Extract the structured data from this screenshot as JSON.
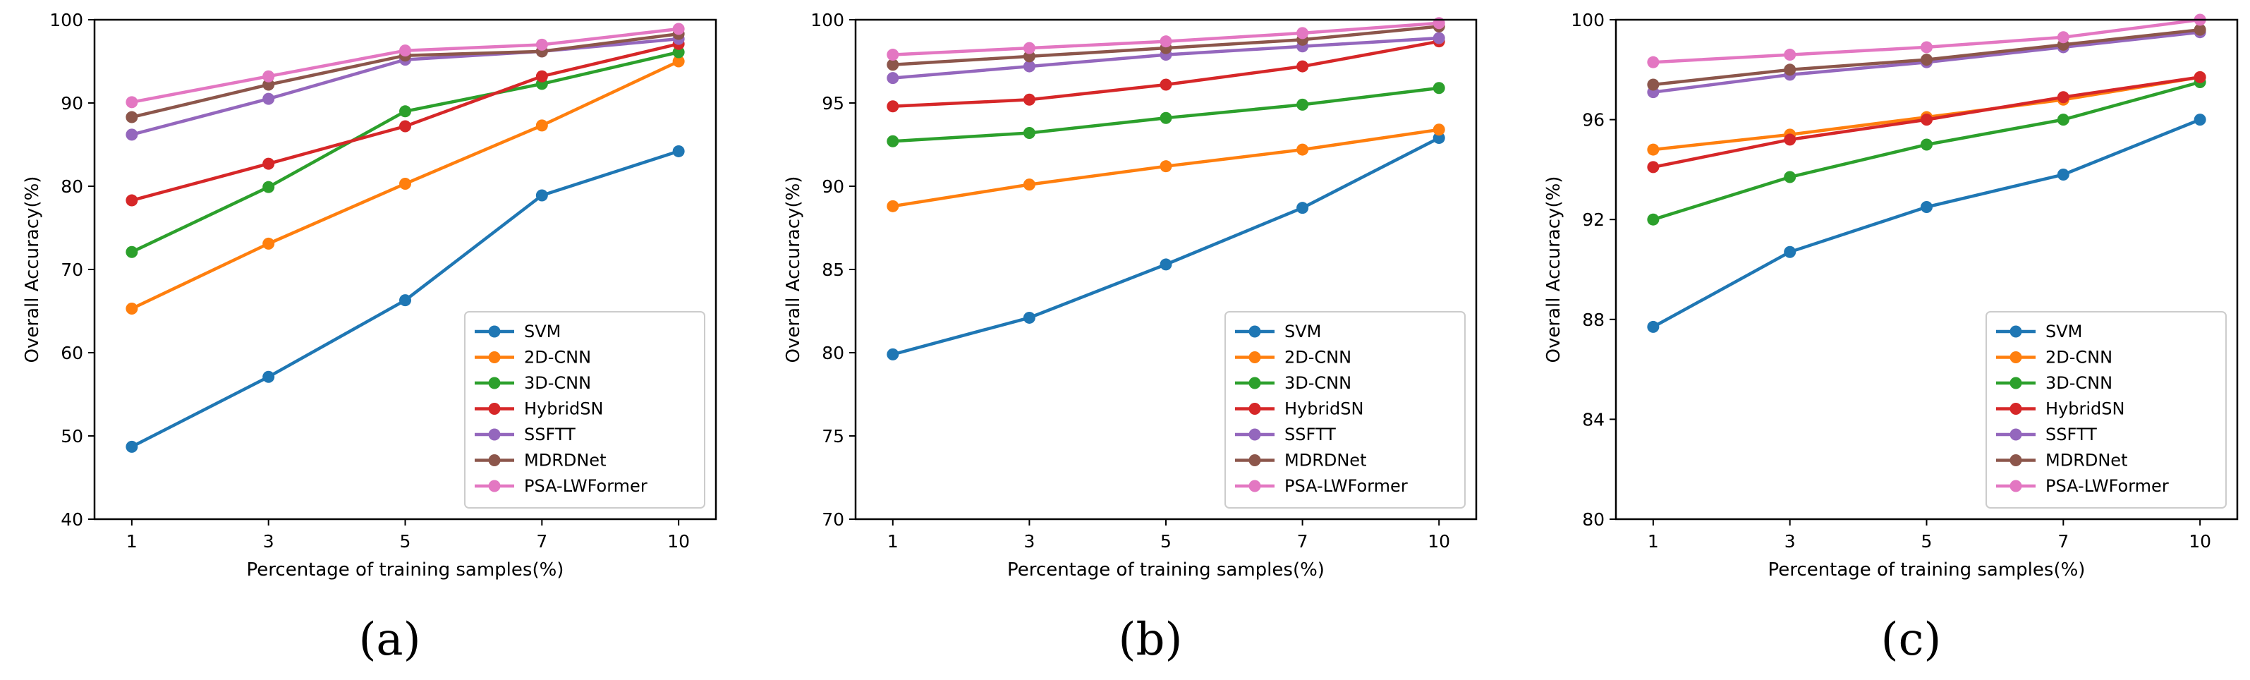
{
  "figure": {
    "series_colors": {
      "SVM": "#1f77b4",
      "2D-CNN": "#ff7f0e",
      "3D-CNN": "#2ca02c",
      "HybridSN": "#d62728",
      "SSFTT": "#9467bd",
      "MDRDNet": "#8c564b",
      "PSA-LWFormer": "#e377c2"
    }
  },
  "chart_data": [
    {
      "type": "line",
      "panel_label": "(a)",
      "xlabel": "Percentage of training samples(%)",
      "ylabel": "Overall Accuracy(%)",
      "categories": [
        "1",
        "3",
        "5",
        "7",
        "10"
      ],
      "ylim": [
        40,
        100
      ],
      "yticks": [
        "40",
        "50",
        "60",
        "70",
        "80",
        "90",
        "100"
      ],
      "legend_position": "lower-right",
      "series": [
        {
          "name": "SVM",
          "values": [
            48.7,
            57.1,
            66.3,
            78.9,
            84.2
          ]
        },
        {
          "name": "2D-CNN",
          "values": [
            65.3,
            73.1,
            80.3,
            87.3,
            95.0
          ]
        },
        {
          "name": "3D-CNN",
          "values": [
            72.1,
            79.9,
            89.0,
            92.3,
            96.1
          ]
        },
        {
          "name": "HybridSN",
          "values": [
            78.3,
            82.7,
            87.2,
            93.2,
            97.1
          ]
        },
        {
          "name": "SSFTT",
          "values": [
            86.2,
            90.5,
            95.2,
            96.2,
            97.7
          ]
        },
        {
          "name": "MDRDNet",
          "values": [
            88.3,
            92.2,
            95.7,
            96.2,
            98.3
          ]
        },
        {
          "name": "PSA-LWFormer",
          "values": [
            90.1,
            93.2,
            96.3,
            97.0,
            98.9
          ]
        }
      ]
    },
    {
      "type": "line",
      "panel_label": "(b)",
      "xlabel": "Percentage of training samples(%)",
      "ylabel": "Overall Accuracy(%)",
      "categories": [
        "1",
        "3",
        "5",
        "7",
        "10"
      ],
      "ylim": [
        70,
        100
      ],
      "yticks": [
        "70",
        "75",
        "80",
        "85",
        "90",
        "95",
        "100"
      ],
      "legend_position": "lower-right",
      "series": [
        {
          "name": "SVM",
          "values": [
            79.9,
            82.1,
            85.3,
            88.7,
            92.9
          ]
        },
        {
          "name": "2D-CNN",
          "values": [
            88.8,
            90.1,
            91.2,
            92.2,
            93.4
          ]
        },
        {
          "name": "3D-CNN",
          "values": [
            92.7,
            93.2,
            94.1,
            94.9,
            95.9
          ]
        },
        {
          "name": "HybridSN",
          "values": [
            94.8,
            95.2,
            96.1,
            97.2,
            98.7
          ]
        },
        {
          "name": "SSFTT",
          "values": [
            96.5,
            97.2,
            97.9,
            98.4,
            98.9
          ]
        },
        {
          "name": "MDRDNet",
          "values": [
            97.3,
            97.8,
            98.3,
            98.8,
            99.6
          ]
        },
        {
          "name": "PSA-LWFormer",
          "values": [
            97.9,
            98.3,
            98.7,
            99.2,
            99.8
          ]
        }
      ]
    },
    {
      "type": "line",
      "panel_label": "(c)",
      "xlabel": "Percentage of training samples(%)",
      "ylabel": "Overall Accuracy(%)",
      "categories": [
        "1",
        "3",
        "5",
        "7",
        "10"
      ],
      "ylim": [
        80,
        100
      ],
      "yticks": [
        "80",
        "84",
        "88",
        "92",
        "96",
        "100"
      ],
      "legend_position": "lower-right",
      "series": [
        {
          "name": "SVM",
          "values": [
            87.7,
            90.7,
            92.5,
            93.8,
            96.0
          ]
        },
        {
          "name": "2D-CNN",
          "values": [
            94.8,
            95.4,
            96.1,
            96.8,
            97.7
          ]
        },
        {
          "name": "3D-CNN",
          "values": [
            92.0,
            93.7,
            95.0,
            96.0,
            97.5
          ]
        },
        {
          "name": "HybridSN",
          "values": [
            94.1,
            95.2,
            96.0,
            96.9,
            97.7
          ]
        },
        {
          "name": "SSFTT",
          "values": [
            97.1,
            97.8,
            98.3,
            98.9,
            99.5
          ]
        },
        {
          "name": "MDRDNet",
          "values": [
            97.4,
            98.0,
            98.4,
            99.0,
            99.6
          ]
        },
        {
          "name": "PSA-LWFormer",
          "values": [
            98.3,
            98.6,
            98.9,
            99.3,
            100.0
          ]
        }
      ]
    }
  ]
}
